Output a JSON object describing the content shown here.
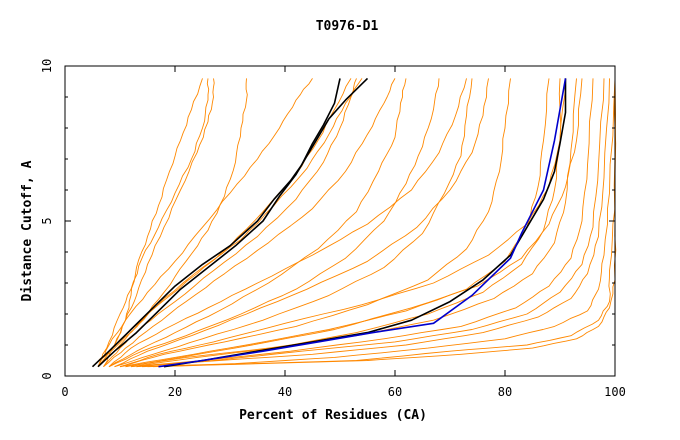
{
  "chart_data": {
    "type": "line",
    "title": "T0976-D1",
    "xlabel": "Percent of Residues (CA)",
    "ylabel": "Distance Cutoff, A",
    "xlim": [
      0,
      100
    ],
    "ylim": [
      0,
      10
    ],
    "x_ticks": [
      0,
      20,
      40,
      60,
      80,
      100
    ],
    "y_ticks": [
      0,
      5,
      10
    ],
    "grid": false,
    "colors": {
      "background_curves": "#ff8800",
      "highlight_black": "#000000",
      "highlight_blue": "#0000cc",
      "axis": "#000000"
    },
    "background_series": [
      {
        "x": [
          5,
          8,
          12,
          17,
          24,
          30,
          36,
          42,
          46,
          49,
          52
        ],
        "y": [
          0.3,
          0.8,
          1.5,
          2.3,
          3.3,
          4.2,
          5.3,
          6.5,
          7.6,
          8.6,
          9.6
        ]
      },
      {
        "x": [
          5,
          9,
          13,
          18,
          25,
          32,
          38,
          44,
          48,
          51,
          54
        ],
        "y": [
          0.3,
          0.9,
          1.6,
          2.5,
          3.5,
          4.4,
          5.5,
          6.7,
          7.8,
          8.8,
          9.6
        ]
      },
      {
        "x": [
          6,
          8,
          11,
          15,
          20,
          25,
          30,
          35,
          39,
          42,
          45
        ],
        "y": [
          0.3,
          1.0,
          1.8,
          2.7,
          3.7,
          4.8,
          5.9,
          7.0,
          8.0,
          8.9,
          9.6
        ]
      },
      {
        "x": [
          6,
          9,
          11,
          13,
          15,
          18,
          21,
          24,
          26,
          27,
          27
        ],
        "y": [
          0.3,
          1.0,
          1.8,
          2.6,
          3.6,
          4.8,
          6.0,
          7.2,
          8.2,
          9.0,
          9.6
        ]
      },
      {
        "x": [
          7,
          9,
          11,
          12,
          13,
          15,
          17,
          19,
          21,
          23,
          25
        ],
        "y": [
          0.3,
          1.0,
          1.8,
          2.6,
          3.5,
          4.5,
          5.5,
          6.6,
          7.6,
          8.6,
          9.6
        ]
      },
      {
        "x": [
          6,
          8,
          10,
          12,
          14,
          17,
          20,
          23,
          25,
          26,
          26
        ],
        "y": [
          0.3,
          1.1,
          2.0,
          2.8,
          3.8,
          4.8,
          5.9,
          7.0,
          8.0,
          8.9,
          9.6
        ]
      },
      {
        "x": [
          7,
          10,
          14,
          20,
          27,
          35,
          42,
          47,
          50,
          52,
          53
        ],
        "y": [
          0.3,
          0.9,
          1.6,
          2.4,
          3.4,
          4.5,
          5.7,
          6.9,
          8.0,
          9.0,
          9.6
        ]
      },
      {
        "x": [
          8,
          13,
          20,
          28,
          37,
          46,
          53,
          57,
          60,
          61,
          62
        ],
        "y": [
          0.3,
          0.8,
          1.4,
          2.1,
          3.0,
          4.1,
          5.3,
          6.6,
          7.7,
          8.8,
          9.6
        ]
      },
      {
        "x": [
          8,
          14,
          22,
          32,
          42,
          51,
          58,
          62,
          65,
          67,
          68
        ],
        "y": [
          0.3,
          0.8,
          1.3,
          2.0,
          2.8,
          3.8,
          5.0,
          6.2,
          7.4,
          8.6,
          9.6
        ]
      },
      {
        "x": [
          9,
          16,
          25,
          36,
          48,
          58,
          65,
          69,
          72,
          73,
          74
        ],
        "y": [
          0.3,
          0.7,
          1.2,
          1.8,
          2.6,
          3.5,
          4.6,
          5.9,
          7.1,
          8.4,
          9.6
        ]
      },
      {
        "x": [
          10,
          18,
          29,
          42,
          55,
          66,
          73,
          77,
          79,
          80,
          81
        ],
        "y": [
          0.3,
          0.7,
          1.1,
          1.6,
          2.3,
          3.1,
          4.1,
          5.3,
          6.6,
          8.0,
          9.6
        ]
      },
      {
        "x": [
          10,
          20,
          33,
          48,
          62,
          73,
          80,
          84,
          86,
          87,
          88
        ],
        "y": [
          0.3,
          0.6,
          1.0,
          1.5,
          2.1,
          2.8,
          3.7,
          4.8,
          6.1,
          7.6,
          9.6
        ]
      },
      {
        "x": [
          11,
          22,
          37,
          53,
          67,
          78,
          85,
          89,
          91,
          92,
          93
        ],
        "y": [
          0.3,
          0.6,
          0.9,
          1.3,
          1.8,
          2.5,
          3.3,
          4.3,
          5.6,
          7.3,
          9.6
        ]
      },
      {
        "x": [
          12,
          25,
          41,
          58,
          72,
          82,
          88,
          92,
          94,
          95,
          96
        ],
        "y": [
          0.3,
          0.5,
          0.8,
          1.2,
          1.6,
          2.2,
          2.9,
          3.8,
          5.0,
          6.8,
          9.6
        ]
      },
      {
        "x": [
          13,
          28,
          45,
          62,
          76,
          86,
          92,
          95,
          97,
          98,
          99
        ],
        "y": [
          0.3,
          0.5,
          0.7,
          1.0,
          1.4,
          1.9,
          2.5,
          3.3,
          4.5,
          6.4,
          9.6
        ]
      },
      {
        "x": [
          14,
          31,
          49,
          66,
          80,
          89,
          95,
          97,
          98,
          99,
          100
        ],
        "y": [
          0.3,
          0.4,
          0.6,
          0.9,
          1.2,
          1.6,
          2.1,
          2.8,
          3.9,
          5.9,
          9.6
        ]
      },
      {
        "x": [
          15,
          34,
          53,
          70,
          84,
          92,
          97,
          99,
          99,
          100,
          100
        ],
        "y": [
          0.3,
          0.4,
          0.5,
          0.8,
          1.0,
          1.3,
          1.8,
          2.4,
          3.4,
          5.4,
          9.6
        ]
      },
      {
        "x": [
          12,
          24,
          38,
          53,
          66,
          76,
          83,
          87,
          89,
          90,
          90
        ],
        "y": [
          0.3,
          0.6,
          0.9,
          1.4,
          2.0,
          2.7,
          3.6,
          4.7,
          6.0,
          7.6,
          9.6
        ]
      },
      {
        "x": [
          11,
          21,
          34,
          49,
          63,
          75,
          83,
          88,
          91,
          93,
          94
        ],
        "y": [
          0.3,
          0.6,
          1.0,
          1.5,
          2.2,
          2.9,
          3.8,
          4.9,
          6.1,
          7.6,
          9.6
        ]
      },
      {
        "x": [
          13,
          27,
          43,
          60,
          74,
          84,
          90,
          94,
          96,
          97,
          98
        ],
        "y": [
          0.3,
          0.5,
          0.8,
          1.1,
          1.5,
          2.0,
          2.7,
          3.6,
          4.8,
          6.8,
          9.6
        ]
      },
      {
        "x": [
          16,
          36,
          55,
          72,
          85,
          93,
          97,
          99,
          100,
          100,
          100
        ],
        "y": [
          0.3,
          0.4,
          0.5,
          0.7,
          0.9,
          1.2,
          1.6,
          2.2,
          3.1,
          5.0,
          9.6
        ]
      },
      {
        "x": [
          9,
          15,
          23,
          33,
          44,
          55,
          64,
          70,
          74,
          76,
          77
        ],
        "y": [
          0.3,
          0.8,
          1.3,
          2.0,
          2.8,
          3.7,
          4.8,
          6.0,
          7.2,
          8.4,
          9.6
        ]
      },
      {
        "x": [
          7,
          11,
          16,
          22,
          29,
          37,
          45,
          51,
          55,
          58,
          60
        ],
        "y": [
          0.3,
          0.9,
          1.6,
          2.4,
          3.3,
          4.3,
          5.4,
          6.6,
          7.8,
          8.8,
          9.6
        ]
      },
      {
        "x": [
          6,
          10,
          14,
          18,
          22,
          26,
          29,
          31,
          32,
          33,
          33
        ],
        "y": [
          0.3,
          1.0,
          1.8,
          2.7,
          3.7,
          4.7,
          5.8,
          6.9,
          8.0,
          8.9,
          9.6
        ]
      },
      {
        "x": [
          8,
          12,
          18,
          26,
          35,
          45,
          55,
          63,
          68,
          71,
          73
        ],
        "y": [
          0.3,
          0.9,
          1.5,
          2.2,
          3.0,
          3.9,
          4.9,
          6.0,
          7.2,
          8.4,
          9.6
        ]
      },
      {
        "x": [
          10,
          17,
          27,
          40,
          54,
          67,
          77,
          84,
          88,
          90,
          91
        ],
        "y": [
          0.3,
          0.7,
          1.1,
          1.7,
          2.3,
          3.0,
          3.9,
          4.9,
          6.1,
          7.6,
          9.6
        ]
      }
    ],
    "series": [
      {
        "color": "#000000",
        "x": [
          5,
          8,
          12,
          16,
          20,
          25,
          30,
          35,
          38,
          41,
          43,
          45,
          47,
          49,
          50
        ],
        "y": [
          0.3,
          0.8,
          1.5,
          2.2,
          2.9,
          3.6,
          4.2,
          5.0,
          5.7,
          6.3,
          6.8,
          7.5,
          8.1,
          8.8,
          9.6
        ]
      },
      {
        "color": "#000000",
        "x": [
          6,
          9,
          13,
          17,
          21,
          26,
          31,
          36,
          39,
          42,
          44,
          46,
          48,
          51,
          55
        ],
        "y": [
          0.3,
          0.8,
          1.4,
          2.1,
          2.8,
          3.5,
          4.2,
          5.0,
          5.8,
          6.5,
          7.1,
          7.7,
          8.3,
          8.9,
          9.6
        ]
      },
      {
        "color": "#000000",
        "x": [
          18,
          25,
          35,
          45,
          55,
          63,
          70,
          76,
          81,
          84,
          87,
          89,
          90,
          91,
          91
        ],
        "y": [
          0.3,
          0.5,
          0.8,
          1.1,
          1.4,
          1.8,
          2.4,
          3.1,
          3.9,
          4.8,
          5.7,
          6.6,
          7.5,
          8.5,
          9.6
        ]
      },
      {
        "color": "#0000cc",
        "x": [
          17,
          25,
          36,
          46,
          56,
          67,
          74,
          81,
          83,
          85,
          87,
          88,
          89,
          90,
          91
        ],
        "y": [
          0.3,
          0.5,
          0.8,
          1.1,
          1.4,
          1.7,
          2.6,
          3.8,
          4.6,
          5.3,
          6.0,
          6.8,
          7.6,
          8.6,
          9.6
        ]
      }
    ]
  }
}
